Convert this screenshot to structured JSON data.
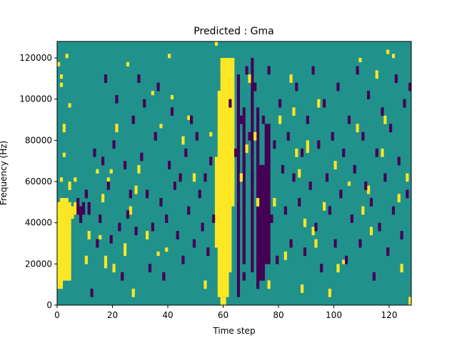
{
  "chart_data": {
    "type": "heatmap",
    "title": "Predicted : Gma",
    "xlabel": "Time step",
    "ylabel": "Frequency (Hz)",
    "xlim": [
      0,
      128
    ],
    "ylim": [
      0,
      128000
    ],
    "x_ticks": [
      0,
      20,
      40,
      60,
      80,
      100,
      120
    ],
    "x_tick_labels": [
      "0",
      "20",
      "40",
      "60",
      "80",
      "100",
      "120"
    ],
    "y_ticks": [
      0,
      20000,
      40000,
      60000,
      80000,
      100000,
      120000
    ],
    "y_tick_labels": [
      "0",
      "20000",
      "40000",
      "60000",
      "80000",
      "100000",
      "120000"
    ],
    "n_time_steps": 128,
    "n_freq_bins": 64,
    "value_levels": [
      -1,
      0,
      1
    ],
    "colors": {
      "low": "#440154",
      "mid": "#21918c",
      "high": "#fde725"
    },
    "grid": false,
    "legend": "none",
    "high_cells": [
      [
        0,
        6,
        25
      ],
      [
        1,
        6,
        26
      ],
      [
        2,
        6,
        26
      ],
      [
        3,
        6,
        26
      ],
      [
        4,
        6,
        25
      ],
      [
        0,
        4,
        20
      ],
      [
        1,
        4,
        20
      ],
      [
        2,
        8,
        10
      ],
      [
        3,
        14,
        17
      ],
      [
        4,
        28,
        30
      ],
      [
        1,
        30,
        31
      ],
      [
        2,
        42,
        44
      ],
      [
        1,
        55,
        56
      ],
      [
        1,
        53,
        54
      ],
      [
        0,
        58,
        59
      ],
      [
        2,
        36,
        37
      ],
      [
        5,
        21,
        24
      ],
      [
        6,
        22,
        25
      ],
      [
        3,
        60,
        61
      ],
      [
        4,
        48,
        49
      ],
      [
        6,
        30,
        31
      ],
      [
        10,
        10,
        12
      ],
      [
        11,
        16,
        18
      ],
      [
        14,
        32,
        33
      ],
      [
        15,
        16,
        17
      ],
      [
        16,
        25,
        27
      ],
      [
        17,
        9,
        12
      ],
      [
        18,
        30,
        31
      ],
      [
        19,
        32,
        33
      ],
      [
        20,
        8,
        10
      ],
      [
        21,
        42,
        44
      ],
      [
        24,
        12,
        15
      ],
      [
        25,
        58,
        59
      ],
      [
        26,
        22,
        24
      ],
      [
        27,
        2,
        4
      ],
      [
        28,
        27,
        29
      ],
      [
        29,
        32,
        34
      ],
      [
        32,
        16,
        18
      ],
      [
        34,
        51,
        52
      ],
      [
        36,
        12,
        13
      ],
      [
        37,
        43,
        44
      ],
      [
        39,
        13,
        14
      ],
      [
        40,
        60,
        61
      ],
      [
        41,
        50,
        51
      ],
      [
        42,
        28,
        30
      ],
      [
        45,
        39,
        41
      ],
      [
        47,
        45,
        46
      ],
      [
        49,
        30,
        32
      ],
      [
        53,
        4,
        6
      ],
      [
        55,
        41,
        42
      ],
      [
        57,
        63,
        64
      ],
      [
        59,
        57,
        58
      ],
      [
        62,
        42,
        43
      ],
      [
        66,
        30,
        32
      ],
      [
        68,
        37,
        39
      ],
      [
        69,
        54,
        56
      ],
      [
        71,
        40,
        42
      ],
      [
        72,
        24,
        26
      ],
      [
        76,
        4,
        6
      ],
      [
        78,
        24,
        26
      ],
      [
        80,
        44,
        46
      ],
      [
        82,
        11,
        13
      ],
      [
        84,
        54,
        56
      ],
      [
        85,
        46,
        48
      ],
      [
        86,
        36,
        38
      ],
      [
        87,
        31,
        33
      ],
      [
        88,
        3,
        5
      ],
      [
        89,
        19,
        21
      ],
      [
        90,
        37,
        40
      ],
      [
        92,
        17,
        19
      ],
      [
        93,
        14,
        16
      ],
      [
        94,
        48,
        50
      ],
      [
        96,
        23,
        25
      ],
      [
        98,
        2,
        4
      ],
      [
        100,
        33,
        35
      ],
      [
        101,
        8,
        10
      ],
      [
        103,
        10,
        11
      ],
      [
        105,
        29,
        30
      ],
      [
        108,
        42,
        44
      ],
      [
        109,
        59,
        60
      ],
      [
        110,
        22,
        24
      ],
      [
        112,
        27,
        29
      ],
      [
        113,
        17,
        19
      ],
      [
        115,
        55,
        57
      ],
      [
        117,
        36,
        38
      ],
      [
        118,
        44,
        46
      ],
      [
        119,
        61,
        62
      ],
      [
        121,
        60,
        61
      ],
      [
        123,
        25,
        27
      ],
      [
        124,
        8,
        10
      ],
      [
        126,
        30,
        32
      ],
      [
        127,
        0,
        2
      ]
    ],
    "high_bands": [
      [
        57,
        59,
        14,
        36
      ],
      [
        58,
        62,
        2,
        52
      ],
      [
        59,
        61,
        0,
        60
      ],
      [
        62,
        63,
        8,
        40
      ],
      [
        63,
        64,
        28,
        52
      ],
      [
        61,
        64,
        24,
        60
      ]
    ],
    "low_cells": [
      [
        7,
        22,
        26
      ],
      [
        8,
        20,
        24
      ],
      [
        9,
        22,
        25
      ],
      [
        10,
        26,
        28
      ],
      [
        11,
        22,
        25
      ],
      [
        12,
        2,
        4
      ],
      [
        13,
        36,
        38
      ],
      [
        14,
        14,
        16
      ],
      [
        15,
        20,
        22
      ],
      [
        16,
        34,
        36
      ],
      [
        17,
        54,
        56
      ],
      [
        18,
        28,
        30
      ],
      [
        19,
        15,
        17
      ],
      [
        20,
        38,
        40
      ],
      [
        21,
        49,
        51
      ],
      [
        22,
        18,
        20
      ],
      [
        23,
        6,
        8
      ],
      [
        24,
        33,
        35
      ],
      [
        25,
        21,
        23
      ],
      [
        26,
        26,
        28
      ],
      [
        27,
        44,
        46
      ],
      [
        28,
        17,
        19
      ],
      [
        29,
        54,
        56
      ],
      [
        30,
        35,
        37
      ],
      [
        31,
        48,
        50
      ],
      [
        32,
        26,
        28
      ],
      [
        33,
        8,
        10
      ],
      [
        34,
        18,
        20
      ],
      [
        35,
        40,
        42
      ],
      [
        36,
        52,
        54
      ],
      [
        37,
        24,
        26
      ],
      [
        38,
        6,
        8
      ],
      [
        39,
        20,
        22
      ],
      [
        40,
        33,
        35
      ],
      [
        41,
        46,
        48
      ],
      [
        42,
        28,
        30
      ],
      [
        43,
        16,
        18
      ],
      [
        44,
        30,
        32
      ],
      [
        45,
        10,
        12
      ],
      [
        46,
        36,
        38
      ],
      [
        47,
        22,
        24
      ],
      [
        48,
        44,
        46
      ],
      [
        49,
        14,
        16
      ],
      [
        50,
        40,
        42
      ],
      [
        51,
        26,
        28
      ],
      [
        52,
        18,
        20
      ],
      [
        53,
        30,
        32
      ],
      [
        54,
        12,
        14
      ],
      [
        55,
        34,
        36
      ],
      [
        56,
        20,
        22
      ],
      [
        62,
        48,
        50
      ],
      [
        64,
        36,
        38
      ],
      [
        65,
        22,
        24
      ],
      [
        66,
        44,
        46
      ],
      [
        67,
        6,
        8
      ],
      [
        68,
        56,
        58
      ],
      [
        69,
        40,
        42
      ],
      [
        70,
        30,
        32
      ],
      [
        71,
        52,
        54
      ],
      [
        72,
        36,
        38
      ],
      [
        73,
        16,
        18
      ],
      [
        74,
        44,
        46
      ],
      [
        75,
        28,
        30
      ],
      [
        76,
        56,
        58
      ],
      [
        77,
        20,
        22
      ],
      [
        78,
        38,
        40
      ],
      [
        79,
        10,
        12
      ],
      [
        80,
        48,
        50
      ],
      [
        81,
        32,
        34
      ],
      [
        82,
        22,
        24
      ],
      [
        83,
        40,
        42
      ],
      [
        84,
        14,
        16
      ],
      [
        85,
        30,
        32
      ],
      [
        86,
        52,
        54
      ],
      [
        87,
        24,
        26
      ],
      [
        88,
        36,
        38
      ],
      [
        89,
        12,
        14
      ],
      [
        90,
        44,
        46
      ],
      [
        91,
        28,
        30
      ],
      [
        92,
        56,
        58
      ],
      [
        93,
        18,
        20
      ],
      [
        94,
        38,
        40
      ],
      [
        95,
        8,
        10
      ],
      [
        96,
        48,
        50
      ],
      [
        97,
        30,
        32
      ],
      [
        98,
        22,
        24
      ],
      [
        99,
        40,
        42
      ],
      [
        100,
        14,
        16
      ],
      [
        101,
        52,
        54
      ],
      [
        102,
        26,
        28
      ],
      [
        103,
        36,
        38
      ],
      [
        104,
        10,
        12
      ],
      [
        105,
        44,
        46
      ],
      [
        106,
        20,
        22
      ],
      [
        107,
        32,
        34
      ],
      [
        108,
        56,
        58
      ],
      [
        109,
        14,
        16
      ],
      [
        110,
        40,
        42
      ],
      [
        111,
        28,
        30
      ],
      [
        112,
        50,
        52
      ],
      [
        113,
        24,
        26
      ],
      [
        114,
        6,
        8
      ],
      [
        115,
        36,
        38
      ],
      [
        116,
        18,
        20
      ],
      [
        117,
        46,
        48
      ],
      [
        118,
        30,
        32
      ],
      [
        119,
        12,
        14
      ],
      [
        120,
        42,
        44
      ],
      [
        121,
        22,
        24
      ],
      [
        122,
        54,
        56
      ],
      [
        123,
        34,
        36
      ],
      [
        124,
        16,
        18
      ],
      [
        125,
        48,
        50
      ],
      [
        126,
        26,
        28
      ],
      [
        127,
        52,
        54
      ]
    ],
    "low_bands": [
      [
        65,
        66,
        2,
        56
      ],
      [
        67,
        68,
        10,
        48
      ],
      [
        70,
        71,
        8,
        60
      ],
      [
        72,
        73,
        4,
        48
      ],
      [
        73,
        75,
        6,
        34
      ],
      [
        75,
        77,
        10,
        44
      ]
    ]
  }
}
